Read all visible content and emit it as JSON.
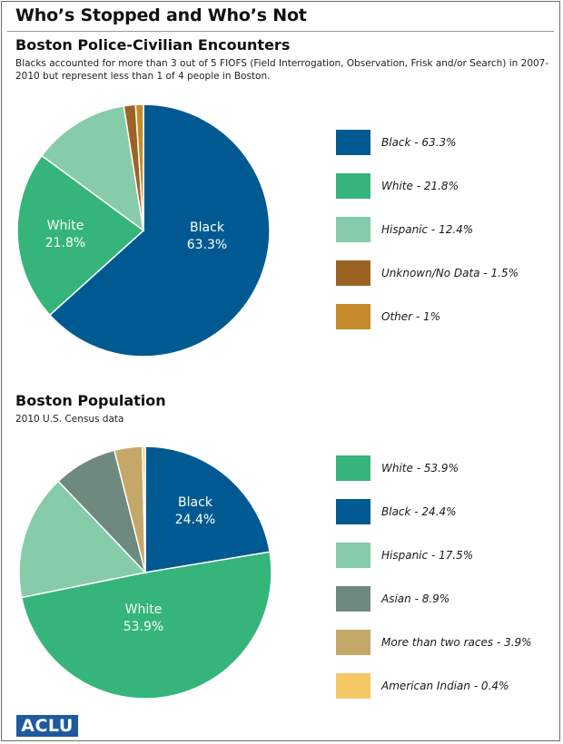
{
  "page": {
    "title": "Who’s Stopped and Who’s Not",
    "logo": "ACLU"
  },
  "chart_data": [
    {
      "type": "pie",
      "title": "Boston Police-Civilian Encounters",
      "subtitle": "Blacks accounted for more than 3 out of 5 FIOFS (Field Interrogation, Observation, Frisk and/or Search) in 2007-2010 but represent less than 1 of 4 people in Boston.",
      "legend_position": "right",
      "slices": [
        {
          "name": "Black",
          "value": 63.3,
          "color": "#005a91",
          "legend": "Black - 63.3%",
          "label_lines": [
            "Black",
            "63.3%"
          ]
        },
        {
          "name": "White",
          "value": 21.8,
          "color": "#35b57a",
          "legend": "White - 21.8%",
          "label_lines": [
            "White",
            "21.8%"
          ]
        },
        {
          "name": "Hispanic",
          "value": 12.4,
          "color": "#86ccaa",
          "legend": "Hispanic - 12.4%",
          "label_lines": []
        },
        {
          "name": "Unknown/No Data",
          "value": 1.5,
          "color": "#9b6425",
          "legend": "Unknown/No Data - 1.5%",
          "label_lines": []
        },
        {
          "name": "Other",
          "value": 1.0,
          "color": "#c58b2a",
          "legend": "Other - 1%",
          "label_lines": []
        }
      ]
    },
    {
      "type": "pie",
      "title": "Boston Population",
      "subtitle": "2010 U.S. Census data",
      "legend_position": "right",
      "slices": [
        {
          "name": "Black",
          "value": 24.4,
          "color": "#005a91",
          "legend": "Black - 24.4%",
          "label_lines": [
            "Black",
            "24.4%"
          ]
        },
        {
          "name": "White",
          "value": 53.9,
          "color": "#35b57a",
          "legend": "White - 53.9%",
          "label_lines": [
            "White",
            "53.9%"
          ]
        },
        {
          "name": "Hispanic",
          "value": 17.5,
          "color": "#86ccaa",
          "legend": "Hispanic - 17.5%",
          "label_lines": []
        },
        {
          "name": "Asian",
          "value": 8.9,
          "color": "#6e8a7f",
          "legend": "Asian - 8.9%",
          "label_lines": []
        },
        {
          "name": "More than two races",
          "value": 3.9,
          "color": "#c4a86a",
          "legend": "More than two races - 3.9%",
          "label_lines": []
        },
        {
          "name": "American Indian",
          "value": 0.4,
          "color": "#f4c865",
          "legend": "American Indian - 0.4%",
          "label_lines": []
        }
      ],
      "legend_order": [
        "White",
        "Black",
        "Hispanic",
        "Asian",
        "More than two races",
        "American Indian"
      ]
    }
  ]
}
